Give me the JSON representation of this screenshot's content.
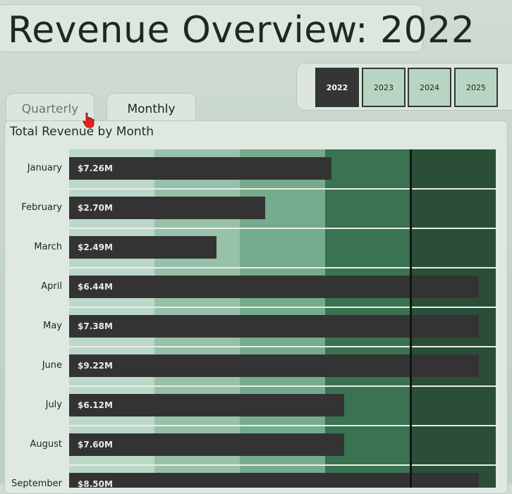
{
  "header": {
    "title": "Revenue Overview: 2022"
  },
  "year_selector": {
    "years": [
      "2022",
      "2023",
      "2024",
      "2025"
    ],
    "selected": "2022"
  },
  "tabs": [
    {
      "label": "Quarterly",
      "active": false
    },
    {
      "label": "Monthly",
      "active": true
    }
  ],
  "chart": {
    "title": "Total Revenue by Month"
  },
  "colors": {
    "bar": "#333333",
    "bands": [
      "#bcd8c8",
      "#98c1a9",
      "#76ab8e",
      "#3a7352",
      "#2a4e38"
    ],
    "target": "#0f1511"
  },
  "chart_data": {
    "type": "bar",
    "orientation": "horizontal",
    "categories": [
      "January",
      "February",
      "March",
      "April",
      "May",
      "June",
      "July",
      "August",
      "September"
    ],
    "values": [
      7.26,
      2.7,
      2.49,
      6.44,
      7.38,
      9.22,
      6.12,
      7.6,
      8.5
    ],
    "value_labels": [
      "$7.26M",
      "$2.70M",
      "$2.49M",
      "$6.44M",
      "$7.38M",
      "$9.22M",
      "$6.12M",
      "$7.60M",
      "$8.50M"
    ],
    "bullet_fill": [
      0.615,
      0.46,
      0.345,
      0.96,
      0.96,
      0.96,
      0.645,
      0.645,
      0.96
    ],
    "bands_count": 5,
    "target_fraction": 0.8
  }
}
